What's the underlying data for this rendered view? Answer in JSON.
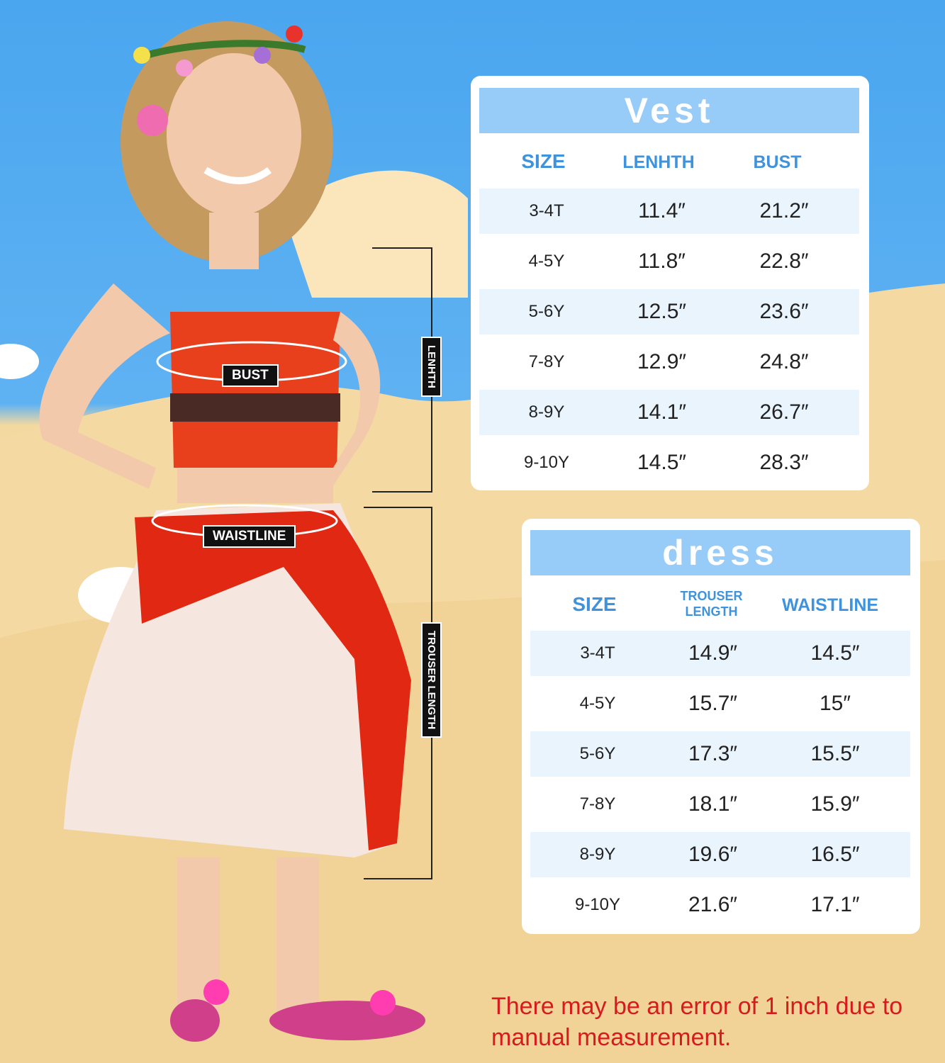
{
  "colors": {
    "band": "#97cbf8",
    "header_text": "#3f93dc",
    "row_shade": "#e9f4fd",
    "note": "#d8191e"
  },
  "figure": {
    "labels": {
      "bust": "BUST",
      "waistline": "WAISTLINE",
      "length": "LENHTH",
      "trouser_length": "TROUSER LENGTH"
    }
  },
  "vest": {
    "title": "Vest",
    "headers": [
      "SIZE",
      "LENHTH",
      "BUST"
    ],
    "rows": [
      [
        "3-4T",
        "11.4″",
        "21.2″"
      ],
      [
        "4-5Y",
        "11.8″",
        "22.8″"
      ],
      [
        "5-6Y",
        "12.5″",
        "23.6″"
      ],
      [
        "7-8Y",
        "12.9″",
        "24.8″"
      ],
      [
        "8-9Y",
        "14.1″",
        "26.7″"
      ],
      [
        "9-10Y",
        "14.5″",
        "28.3″"
      ]
    ]
  },
  "dress": {
    "title": "dress",
    "headers": [
      "SIZE",
      "TROUSER LENGTH",
      "WAISTLINE"
    ],
    "rows": [
      [
        "3-4T",
        "14.9″",
        "14.5″"
      ],
      [
        "4-5Y",
        "15.7″",
        "15″"
      ],
      [
        "5-6Y",
        "17.3″",
        "15.5″"
      ],
      [
        "7-8Y",
        "18.1″",
        "15.9″"
      ],
      [
        "8-9Y",
        "19.6″",
        "16.5″"
      ],
      [
        "9-10Y",
        "21.6″",
        "17.1″"
      ]
    ]
  },
  "note": "There may be an error of 1 inch due to manual measurement."
}
